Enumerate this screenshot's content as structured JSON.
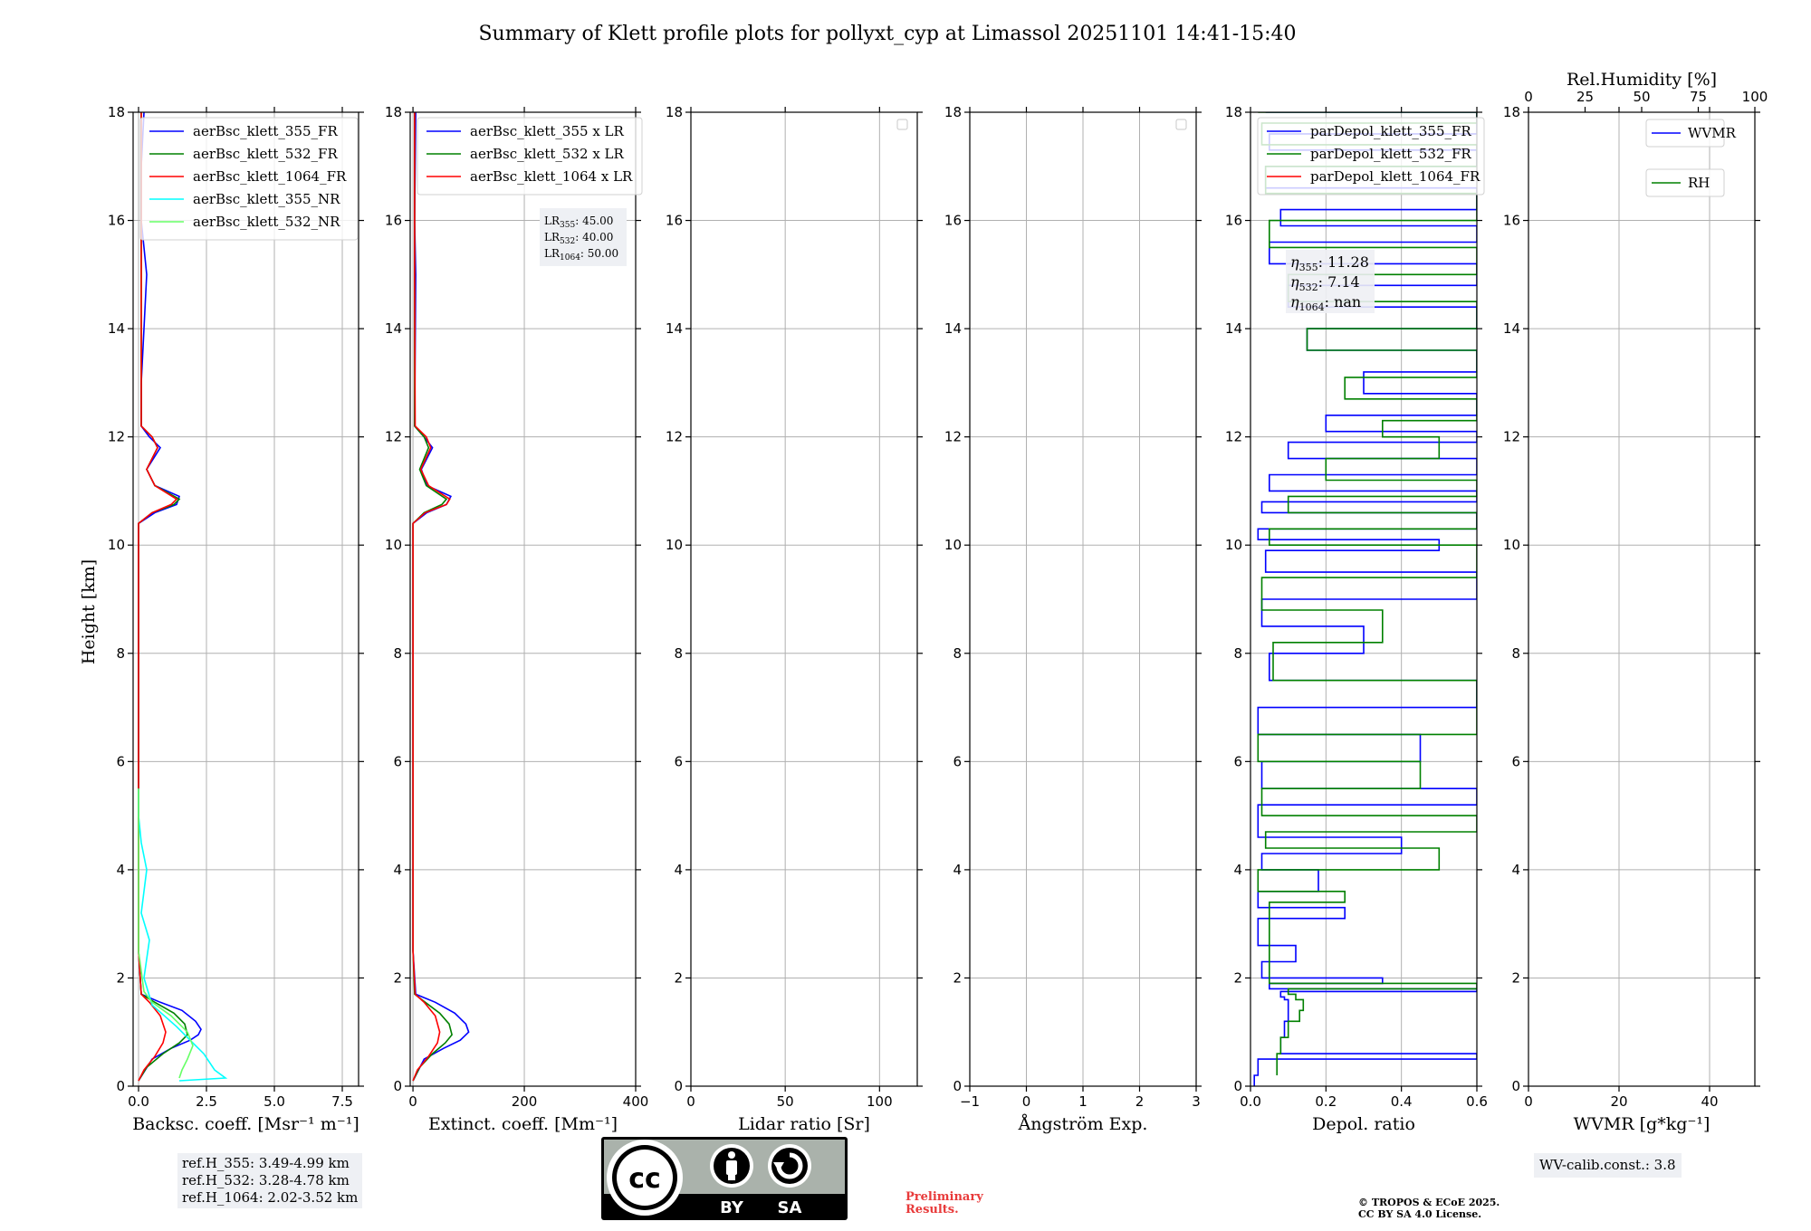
{
  "title": "Summary of Klett profile plots for pollyxt_cyp at Limassol 20251101 14:41-15:40",
  "ylabel": "Height [km]",
  "chart_data": [
    {
      "type": "line",
      "id": "bsc",
      "xlabel": "Backsc. coeff. [Msr⁻¹ m⁻¹]",
      "xlim": [
        -0.2,
        8.1
      ],
      "ylim": [
        0,
        18
      ],
      "xticks": [
        {
          "v": 0,
          "label": "0.0"
        },
        {
          "v": 2.5,
          "label": "2.5"
        },
        {
          "v": 5.0,
          "label": "5.0"
        },
        {
          "v": 7.5,
          "label": "7.5"
        }
      ],
      "legend": [
        "aerBsc_klett_355_FR",
        "aerBsc_klett_532_FR",
        "aerBsc_klett_1064_FR",
        "aerBsc_klett_355_NR",
        "aerBsc_klett_532_NR"
      ],
      "series": [
        {
          "name": "aerBsc_klett_355_FR",
          "color": "#0000ff",
          "x": [
            0.0,
            0.5,
            1.2,
            1.9,
            2.2,
            2.3,
            2.1,
            1.6,
            0.8,
            0.1,
            0.0,
            0.0,
            0.6,
            1.4,
            1.5,
            0.6,
            0.3,
            0.8,
            0.4,
            0.1,
            0.1,
            0.3,
            0.1,
            0.1,
            0.2
          ],
          "y": [
            0.1,
            0.5,
            0.7,
            0.85,
            0.95,
            1.05,
            1.2,
            1.4,
            1.55,
            1.7,
            2.5,
            10.4,
            10.6,
            10.75,
            10.9,
            11.1,
            11.4,
            11.8,
            12.0,
            12.2,
            13.0,
            15.0,
            16.0,
            17.0,
            18.0
          ]
        },
        {
          "name": "aerBsc_klett_532_FR",
          "color": "#008000",
          "x": [
            0.0,
            0.3,
            0.9,
            1.5,
            1.8,
            1.7,
            1.3,
            0.6,
            0.1,
            0.0,
            0.0,
            0.5,
            1.3,
            1.5,
            0.6,
            0.3,
            0.7,
            0.5,
            0.1,
            0.1,
            0.1
          ],
          "y": [
            0.1,
            0.35,
            0.6,
            0.8,
            0.95,
            1.15,
            1.35,
            1.55,
            1.7,
            2.5,
            10.4,
            10.6,
            10.75,
            10.85,
            11.1,
            11.4,
            11.8,
            12.0,
            12.2,
            15.0,
            18.0
          ]
        },
        {
          "name": "aerBsc_klett_1064_FR",
          "color": "#ff0000",
          "x": [
            0.0,
            0.2,
            0.6,
            0.9,
            1.0,
            0.8,
            0.4,
            0.1,
            0.0,
            0.0,
            0.5,
            1.2,
            1.4,
            0.6,
            0.3,
            0.7,
            0.5,
            0.1,
            0.1,
            0.1
          ],
          "y": [
            0.1,
            0.3,
            0.55,
            0.8,
            1.0,
            1.3,
            1.55,
            1.7,
            2.5,
            10.4,
            10.6,
            10.75,
            10.85,
            11.1,
            11.4,
            11.8,
            12.0,
            12.2,
            15.0,
            18.0
          ]
        },
        {
          "name": "aerBsc_klett_355_NR",
          "color": "#00ffff",
          "x": [
            1.5,
            3.2,
            2.8,
            2.6,
            2.4,
            2.0,
            1.4,
            0.5,
            0.2,
            0.4,
            0.1,
            0.3,
            0.1,
            0.0,
            0.0
          ],
          "y": [
            0.1,
            0.15,
            0.3,
            0.45,
            0.6,
            0.8,
            1.1,
            1.5,
            2.0,
            2.7,
            3.2,
            4.0,
            4.5,
            5.0,
            5.5
          ]
        },
        {
          "name": "aerBsc_klett_532_NR",
          "color": "#66ff66",
          "x": [
            1.5,
            1.6,
            1.8,
            2.0,
            1.8,
            1.2,
            0.5,
            0.2,
            0.0,
            0.0
          ],
          "y": [
            0.15,
            0.3,
            0.5,
            0.75,
            1.0,
            1.3,
            1.55,
            1.75,
            2.5,
            5.5
          ]
        }
      ]
    },
    {
      "type": "line",
      "id": "ext",
      "xlabel": "Extinct. coeff. [Mm⁻¹]",
      "xlim": [
        -5,
        400
      ],
      "ylim": [
        0,
        18
      ],
      "xticks": [
        {
          "v": 0,
          "label": "0"
        },
        {
          "v": 200,
          "label": "200"
        },
        {
          "v": 400,
          "label": "400"
        }
      ],
      "legend": [
        "aerBsc_klett_355 x LR",
        "aerBsc_klett_532 x LR",
        "aerBsc_klett_1064 x LR"
      ],
      "series": [
        {
          "name": "aerBsc_klett_355 x LR",
          "color": "#0000ff",
          "x": [
            0,
            20,
            55,
            85,
            100,
            95,
            75,
            40,
            5,
            0,
            0,
            25,
            60,
            68,
            25,
            15,
            35,
            20,
            3,
            5,
            3,
            5
          ],
          "y": [
            0.1,
            0.5,
            0.7,
            0.85,
            1.0,
            1.15,
            1.35,
            1.55,
            1.7,
            2.5,
            10.4,
            10.6,
            10.75,
            10.9,
            11.1,
            11.4,
            11.8,
            12.0,
            12.2,
            15.0,
            16.0,
            18.0
          ]
        },
        {
          "name": "aerBsc_klett_532 x LR",
          "color": "#008000",
          "x": [
            0,
            12,
            35,
            58,
            70,
            65,
            48,
            22,
            3,
            0,
            0,
            20,
            52,
            60,
            24,
            12,
            28,
            20,
            3,
            3,
            3
          ],
          "y": [
            0.1,
            0.35,
            0.6,
            0.8,
            0.95,
            1.15,
            1.35,
            1.55,
            1.7,
            2.5,
            10.4,
            10.6,
            10.75,
            10.85,
            11.1,
            11.4,
            11.8,
            12.0,
            12.2,
            15.0,
            18.0
          ]
        },
        {
          "name": "aerBsc_klett_1064 x LR",
          "color": "#ff0000",
          "x": [
            0,
            8,
            28,
            44,
            48,
            40,
            20,
            4,
            0,
            0,
            22,
            60,
            66,
            28,
            14,
            32,
            24,
            4,
            3,
            3
          ],
          "y": [
            0.1,
            0.3,
            0.55,
            0.8,
            1.0,
            1.3,
            1.55,
            1.7,
            2.5,
            10.4,
            10.6,
            10.75,
            10.85,
            11.1,
            11.4,
            11.8,
            12.0,
            12.2,
            15.0,
            18.0
          ]
        }
      ],
      "lr_lines": [
        "45.00",
        "40.00",
        "50.00"
      ],
      "lr_subs": [
        "355",
        "532",
        "1064"
      ]
    },
    {
      "type": "line",
      "id": "lr",
      "xlabel": "Lidar ratio [Sr]",
      "xlim": [
        0,
        120
      ],
      "ylim": [
        0,
        18
      ],
      "xticks": [
        {
          "v": 0,
          "label": "0"
        },
        {
          "v": 50,
          "label": "50"
        },
        {
          "v": 100,
          "label": "100"
        }
      ],
      "series": []
    },
    {
      "type": "line",
      "id": "ang",
      "xlabel": "Ångström Exp.",
      "xlim": [
        -1,
        3
      ],
      "ylim": [
        0,
        18
      ],
      "xticks": [
        {
          "v": -1,
          "label": "−1"
        },
        {
          "v": 0,
          "label": "0"
        },
        {
          "v": 1,
          "label": "1"
        },
        {
          "v": 2,
          "label": "2"
        },
        {
          "v": 3,
          "label": "3"
        }
      ],
      "series": []
    },
    {
      "type": "line",
      "id": "depol",
      "xlabel": "Depol. ratio",
      "xlim": [
        0,
        0.6
      ],
      "ylim": [
        0,
        18
      ],
      "xticks": [
        {
          "v": 0,
          "label": "0.0"
        },
        {
          "v": 0.2,
          "label": "0.2"
        },
        {
          "v": 0.4,
          "label": "0.4"
        },
        {
          "v": 0.6,
          "label": "0.6"
        }
      ],
      "legend": [
        "parDepol_klett_355_FR",
        "parDepol_klett_532_FR",
        "parDepol_klett_1064_FR"
      ],
      "series": [
        {
          "name": "parDepol_klett_355_FR",
          "color": "#0000ff",
          "x": [
            0.01,
            0.02,
            0.6,
            0.08,
            0.09,
            0.1,
            0.1,
            0.09,
            0.08,
            0.6,
            0.05,
            0.35,
            0.03,
            0.12,
            0.02,
            0.25,
            0.02,
            0.18,
            0.03,
            0.4,
            0.02,
            0.6,
            0.03,
            0.45,
            0.02,
            0.6,
            0.05,
            0.3,
            0.03,
            0.6,
            0.04,
            0.5,
            0.02,
            0.6,
            0.03,
            0.6,
            0.05,
            0.6,
            0.1,
            0.6,
            0.2,
            0.6,
            0.3,
            0.6,
            0.15,
            0.6,
            0.1,
            0.6,
            0.05,
            0.6,
            0.08,
            0.6,
            0.04,
            0.6,
            0.05,
            0.6,
            0.04
          ],
          "y": [
            0.0,
            0.2,
            0.5,
            0.6,
            0.9,
            1.2,
            1.5,
            1.6,
            1.65,
            1.75,
            1.8,
            1.9,
            2.0,
            2.3,
            2.6,
            3.1,
            3.3,
            3.6,
            4.0,
            4.3,
            4.6,
            5.2,
            5.5,
            6.0,
            6.5,
            7.0,
            7.5,
            8.0,
            8.5,
            9.0,
            9.5,
            9.9,
            10.1,
            10.3,
            10.6,
            10.8,
            11.0,
            11.3,
            11.6,
            11.9,
            12.1,
            12.4,
            12.8,
            13.2,
            13.6,
            14.0,
            14.4,
            14.8,
            15.2,
            15.6,
            15.9,
            16.2,
            16.6,
            17.0,
            17.3,
            17.6,
            18.0
          ]
        },
        {
          "name": "parDepol_klett_532_FR",
          "color": "#008000",
          "x": [
            0.07,
            0.08,
            0.1,
            0.13,
            0.14,
            0.12,
            0.1,
            0.6,
            0.05,
            0.25,
            0.02,
            0.5,
            0.04,
            0.6,
            0.03,
            0.45,
            0.02,
            0.6,
            0.06,
            0.35,
            0.03,
            0.6,
            0.05,
            0.6,
            0.1,
            0.6,
            0.2,
            0.5,
            0.35,
            0.6,
            0.25,
            0.6,
            0.15,
            0.6,
            0.1,
            0.6,
            0.05,
            0.6,
            0.04,
            0.6,
            0.03,
            0.6,
            0.02
          ],
          "y": [
            0.2,
            0.6,
            0.9,
            1.2,
            1.4,
            1.6,
            1.7,
            1.8,
            1.9,
            3.4,
            3.6,
            4.0,
            4.4,
            4.7,
            5.0,
            5.5,
            6.0,
            6.5,
            7.5,
            8.2,
            8.8,
            9.4,
            10.0,
            10.3,
            10.6,
            10.9,
            11.2,
            11.6,
            12.0,
            12.3,
            12.7,
            13.1,
            13.6,
            14.0,
            14.5,
            15.0,
            15.5,
            16.0,
            16.5,
            17.0,
            17.4,
            17.8,
            18.0
          ]
        }
      ],
      "eta_lines": [
        "11.28",
        "7.14",
        "nan"
      ],
      "eta_subs": [
        "355",
        "532",
        "1064"
      ]
    },
    {
      "type": "line",
      "id": "wv",
      "xlabel": "WVMR [g*kg⁻¹]",
      "xlim": [
        0,
        50
      ],
      "ylim": [
        0,
        18
      ],
      "xticks": [
        {
          "v": 0,
          "label": "0"
        },
        {
          "v": 20,
          "label": "20"
        },
        {
          "v": 40,
          "label": "40"
        }
      ],
      "top_xlabel": "Rel.Humidity [%]",
      "top_xlim": [
        0,
        100
      ],
      "top_xticks": [
        {
          "v": 0,
          "label": "0"
        },
        {
          "v": 25,
          "label": "25"
        },
        {
          "v": 50,
          "label": "50"
        },
        {
          "v": 75,
          "label": "75"
        },
        {
          "v": 100,
          "label": "100"
        }
      ],
      "legend": [
        "WVMR",
        "RH"
      ],
      "legend_colors": [
        "#0000ff",
        "#008000"
      ],
      "series": []
    }
  ],
  "yticks": [
    "0",
    "2",
    "4",
    "6",
    "8",
    "10",
    "12",
    "14",
    "16",
    "18"
  ],
  "notes": {
    "refh": [
      "ref.H_355: 3.49-4.99 km",
      "ref.H_532: 3.28-4.78 km",
      "ref.H_1064: 2.02-3.52 km"
    ],
    "wvcalib": "WV-calib.const.: 3.8",
    "preliminary": [
      "Preliminary",
      "Results."
    ],
    "copyright": [
      "© TROPOS & ECoE 2025.",
      "CC BY SA 4.0 License."
    ],
    "license": {
      "cc": "cc",
      "by": "BY",
      "sa": "SA"
    }
  }
}
